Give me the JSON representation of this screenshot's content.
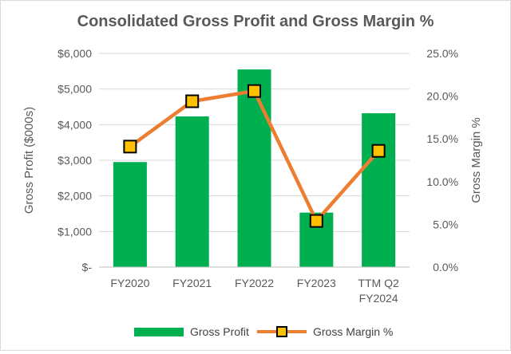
{
  "chart_data": {
    "type": "bar",
    "title": "Consolidated Gross Profit and Gross Margin %",
    "categories": [
      "FY2020",
      "FY2021",
      "FY2022",
      "FY2023",
      "TTM Q2 FY2024"
    ],
    "category_label_lines": [
      [
        "FY2020"
      ],
      [
        "FY2021"
      ],
      [
        "FY2022"
      ],
      [
        "FY2023"
      ],
      [
        "TTM Q2",
        "FY2024"
      ]
    ],
    "ylabel": "Gross Profit ($000s)",
    "y2label": "Gross Margin %",
    "ylim": [
      0,
      6000
    ],
    "y2lim": [
      0,
      25
    ],
    "y_ticks": [
      0,
      1000,
      2000,
      3000,
      4000,
      5000,
      6000
    ],
    "y_tick_labels": [
      "$-",
      "$1,000",
      "$2,000",
      "$3,000",
      "$4,000",
      "$5,000",
      "$6,000"
    ],
    "y2_ticks": [
      0,
      5,
      10,
      15,
      20,
      25
    ],
    "y2_tick_labels": [
      "0.0%",
      "5.0%",
      "10.0%",
      "15.0%",
      "20.0%",
      "25.0%"
    ],
    "grid": true,
    "legend_position": "bottom",
    "series": [
      {
        "name": "Gross Profit",
        "type": "bar",
        "axis": "left",
        "color": "#00b050",
        "values": [
          2950,
          4230,
          5550,
          1530,
          4320
        ]
      },
      {
        "name": "Gross Margin %",
        "type": "line",
        "axis": "right",
        "color": "#ed7d31",
        "marker_fill": "#ffc000",
        "marker_stroke": "#000000",
        "values": [
          14.1,
          19.4,
          20.6,
          5.4,
          13.6
        ]
      }
    ]
  }
}
